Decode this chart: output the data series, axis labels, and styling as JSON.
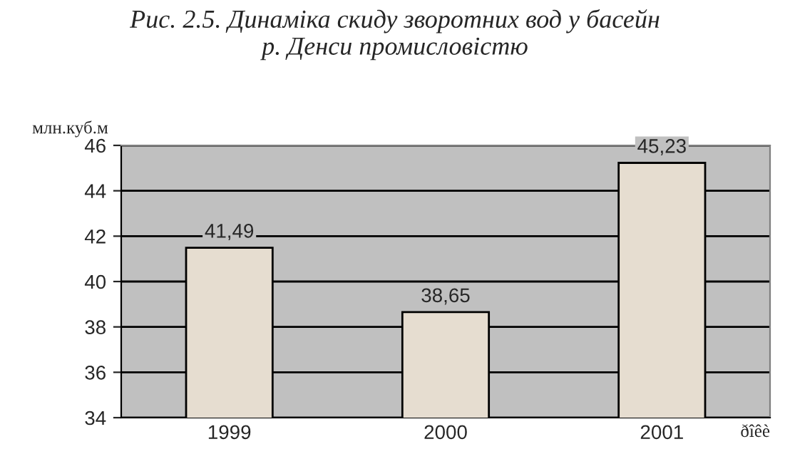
{
  "chart_data": {
    "type": "bar",
    "title": "Рис. 2.5. Динаміка скиду зворотних вод у басейн\nр. Денси промисловістю",
    "ylabel": "млн.куб.м",
    "xlabel": "ðîêè",
    "categories": [
      "1999",
      "2000",
      "2001"
    ],
    "values": [
      41.49,
      38.65,
      45.23
    ],
    "value_labels": [
      "41,49",
      "38,65",
      "45,23"
    ],
    "color": "#e6ddd0",
    "ylim": [
      34,
      46
    ],
    "yticks": [
      34,
      36,
      38,
      40,
      42,
      44,
      46
    ],
    "grid": "y"
  }
}
